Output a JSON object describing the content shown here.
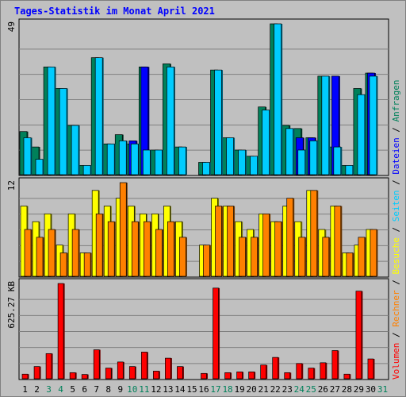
{
  "chart_data": {
    "type": "bar",
    "title": "Tages-Statistik im Monat April 2021",
    "categories": [
      "1",
      "2",
      "3",
      "4",
      "5",
      "6",
      "7",
      "8",
      "9",
      "10",
      "11",
      "12",
      "13",
      "14",
      "15",
      "16",
      "17",
      "18",
      "19",
      "20",
      "21",
      "22",
      "23",
      "24",
      "25",
      "26",
      "27",
      "28",
      "29",
      "30",
      "31"
    ],
    "weekend_days": [
      "3",
      "4",
      "10",
      "11",
      "17",
      "18",
      "24",
      "25",
      "31"
    ],
    "grid": true,
    "panels": [
      {
        "id": "requests",
        "ymax_label": "49",
        "ylim": [
          0,
          49
        ],
        "series": [
          {
            "name": "Anfragen",
            "color": "#00805a",
            "values": [
              14,
              9,
              35,
              28,
              16,
              3,
              38,
              10,
              13,
              10,
              35,
              8,
              36,
              9,
              0,
              4,
              34,
              12,
              8,
              6,
              22,
              49,
              16,
              15,
              12,
              32,
              9,
              3,
              28,
              33,
              0
            ]
          },
          {
            "name": "Dateien",
            "color": "#0000ff",
            "values": [
              0,
              0,
              0,
              0,
              0,
              0,
              0,
              0,
              0,
              11,
              35,
              0,
              0,
              0,
              0,
              0,
              0,
              0,
              0,
              0,
              0,
              0,
              0,
              12,
              12,
              0,
              32,
              0,
              0,
              33,
              0
            ]
          },
          {
            "name": "Seiten",
            "color": "#00ccff",
            "values": [
              12,
              5,
              35,
              28,
              16,
              3,
              38,
              10,
              11,
              10,
              8,
              8,
              35,
              9,
              0,
              4,
              34,
              12,
              8,
              6,
              21,
              49,
              15,
              8,
              11,
              32,
              9,
              3,
              26,
              32,
              0
            ]
          }
        ]
      },
      {
        "id": "visits",
        "ymax_label": "12",
        "ylim": [
          0,
          12
        ],
        "series": [
          {
            "name": "Besuche",
            "color": "#ffff00",
            "values": [
              9,
              7,
              8,
              4,
              8,
              3,
              11,
              9,
              10,
              9,
              8,
              8,
              9,
              7,
              0,
              4,
              10,
              9,
              7,
              6,
              8,
              7,
              9,
              7,
              11,
              6,
              9,
              3,
              4,
              6,
              0
            ]
          },
          {
            "name": "Rechner",
            "color": "#ff8000",
            "values": [
              6,
              5,
              6,
              3,
              6,
              3,
              8,
              7,
              12,
              7,
              7,
              6,
              7,
              5,
              0,
              4,
              9,
              9,
              5,
              5,
              8,
              7,
              10,
              5,
              11,
              5,
              9,
              3,
              5,
              6,
              0
            ]
          }
        ]
      },
      {
        "id": "volume",
        "ymax_label": "625.27 KB",
        "ylim": [
          0,
          625.27
        ],
        "series": [
          {
            "name": "Volumen",
            "color": "#ff0000",
            "values": [
              30,
              80,
              165,
              625,
              40,
              28,
              190,
              70,
              110,
              80,
              175,
              50,
              135,
              80,
              0,
              35,
              595,
              40,
              45,
              45,
              90,
              140,
              40,
              100,
              70,
              105,
              185,
              30,
              575,
              130,
              0
            ]
          }
        ]
      }
    ],
    "legend": {
      "placement": "right-vertical",
      "separator": " / ",
      "labels": [
        "Volumen",
        "Rechner",
        "Besuche",
        "Seiten",
        "Dateien",
        "Anfragen"
      ]
    },
    "colors": {
      "background": "#c0c0c0",
      "plot_background": "#c0c0c0",
      "title": "#0000ff",
      "weekday_label": "#000000",
      "weekend_label": "#00805a",
      "grid": "#808080",
      "legend_separator": "#000000"
    }
  }
}
